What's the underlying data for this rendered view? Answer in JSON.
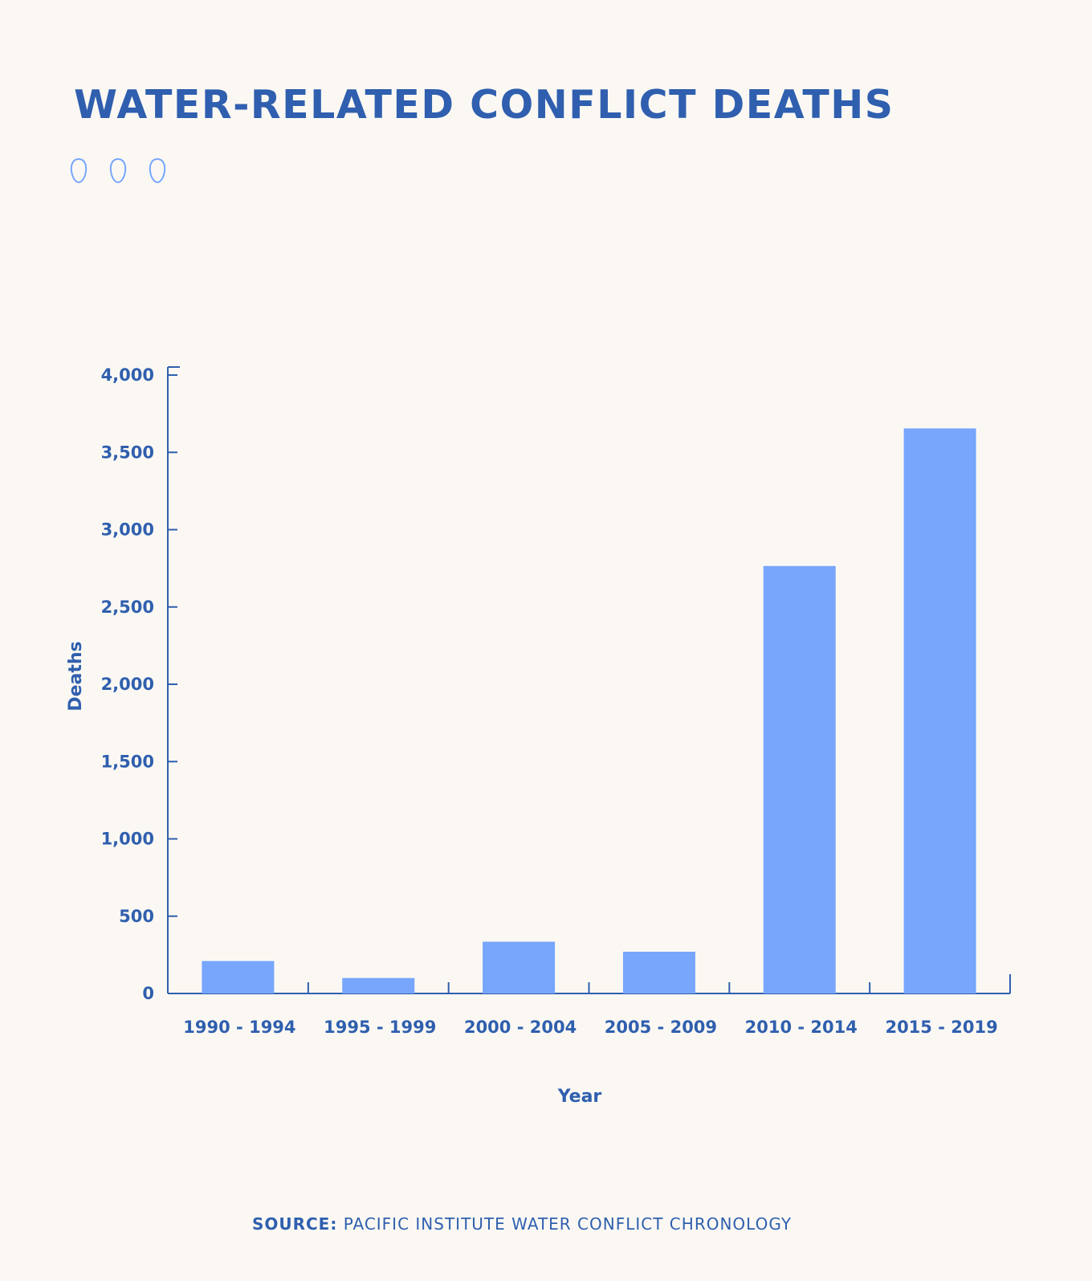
{
  "title": "WATER-RELATED CONFLICT DEATHS",
  "decoration": {
    "icon": "water-drop-outline-icon",
    "count": 3
  },
  "colors": {
    "background": "#fbf8f4",
    "text": "#2f5fae",
    "bar": "#77a6fc",
    "axis": "#2f5fae"
  },
  "chart_data": {
    "type": "bar",
    "title": "WATER-RELATED CONFLICT DEATHS",
    "xlabel": "Year",
    "ylabel": "Deaths",
    "categories": [
      "1990 - 1994",
      "1995 - 1999",
      "2000 - 2004",
      "2005 - 2009",
      "2010 - 2014",
      "2015 - 2019"
    ],
    "values": [
      210,
      100,
      335,
      270,
      2765,
      3655
    ],
    "ylim": [
      0,
      4000
    ],
    "yticks": [
      0,
      500,
      1000,
      1500,
      2000,
      2500,
      3000,
      3500,
      4000
    ],
    "ytick_labels": [
      "0",
      "500",
      "1,000",
      "1,500",
      "2,000",
      "2,500",
      "3,000",
      "3,500",
      "4,000"
    ],
    "grid": false,
    "legend": "none"
  },
  "source": {
    "label": "SOURCE:",
    "text": "PACIFIC INSTITUTE WATER CONFLICT CHRONOLOGY"
  }
}
